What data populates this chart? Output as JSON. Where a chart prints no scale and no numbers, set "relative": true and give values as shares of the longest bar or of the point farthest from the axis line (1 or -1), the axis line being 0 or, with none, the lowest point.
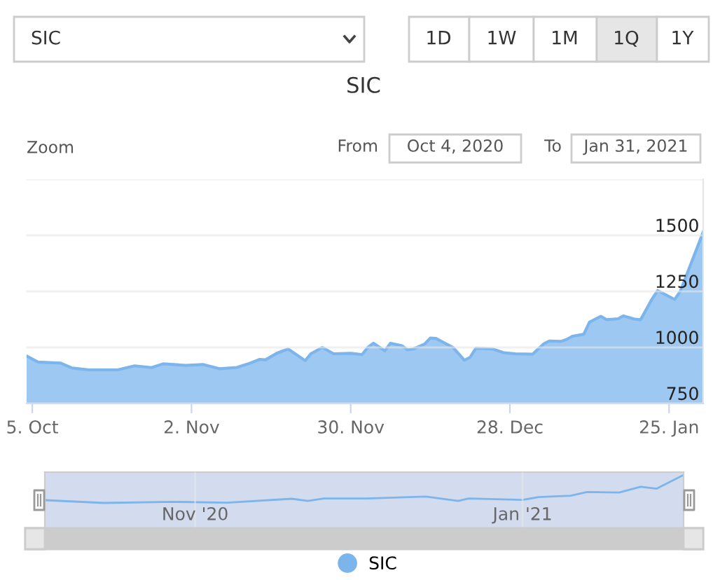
{
  "chart_data": [
    {
      "type": "area",
      "title": "SIC",
      "annotations": [
        "SIC",
        "1D",
        "1W",
        "1M",
        "1Q",
        "1Y",
        "Zoom",
        "From",
        "Oct 4, 2020",
        "To",
        "Jan 31, 2021"
      ],
      "x": [
        "2020-10-04",
        "2020-10-06",
        "2020-10-10",
        "2020-10-12",
        "2020-10-15",
        "2020-10-20",
        "2020-10-23",
        "2020-10-26",
        "2020-10-28",
        "2020-11-01",
        "2020-11-04",
        "2020-11-07",
        "2020-11-10",
        "2020-11-12",
        "2020-11-14",
        "2020-11-15",
        "2020-11-17",
        "2020-11-19",
        "2020-11-22",
        "2020-11-23",
        "2020-11-25",
        "2020-11-27",
        "2020-11-30",
        "2020-12-02",
        "2020-12-03",
        "2020-12-04",
        "2020-12-06",
        "2020-12-07",
        "2020-12-09",
        "2020-12-10",
        "2020-12-11",
        "2020-12-13",
        "2020-12-14",
        "2020-12-15",
        "2020-12-18",
        "2020-12-20",
        "2020-12-21",
        "2020-12-22",
        "2020-12-25",
        "2020-12-27",
        "2020-12-29",
        "2021-01-01",
        "2021-01-03",
        "2021-01-04",
        "2021-01-06",
        "2021-01-07",
        "2021-01-08",
        "2021-01-10",
        "2021-01-11",
        "2021-01-13",
        "2021-01-14",
        "2021-01-16",
        "2021-01-17",
        "2021-01-19",
        "2021-01-20",
        "2021-01-22",
        "2021-01-23",
        "2021-01-26",
        "2021-01-27",
        "2021-01-31"
      ],
      "series": [
        {
          "name": "SIC",
          "color": "#7cb5ec",
          "values": [
            962,
            935,
            930,
            908,
            900,
            900,
            918,
            910,
            927,
            920,
            924,
            905,
            911,
            927,
            947,
            945,
            974,
            993,
            941,
            972,
            1000,
            972,
            974,
            968,
            1000,
            1019,
            985,
            1019,
            1008,
            989,
            993,
            1015,
            1042,
            1040,
            1000,
            943,
            956,
            996,
            993,
            976,
            972,
            970,
            1017,
            1029,
            1027,
            1036,
            1050,
            1059,
            1113,
            1139,
            1124,
            1128,
            1141,
            1126,
            1124,
            1216,
            1254,
            1214,
            1252,
            1515
          ]
        }
      ],
      "xlim": [
        "2020-10-04",
        "2021-01-31"
      ],
      "xticks": [
        {
          "value": "2020-10-05",
          "label": "5. Oct"
        },
        {
          "value": "2020-11-02",
          "label": "2. Nov"
        },
        {
          "value": "2020-11-30",
          "label": "30. Nov"
        },
        {
          "value": "2020-12-28",
          "label": "28. Dec"
        },
        {
          "value": "2021-01-25",
          "label": "25. Jan"
        }
      ],
      "ylim": [
        750,
        1750
      ],
      "yticks": [
        750,
        1000,
        1250,
        1500,
        {
          "value": 1750,
          "label": null
        }
      ],
      "grid": "y",
      "legend": "bottom"
    },
    {
      "type": "line",
      "relative": true,
      "x": [
        "2020-10-04",
        "2020-10-15",
        "2020-10-28",
        "2020-11-07",
        "2020-11-19",
        "2020-11-22",
        "2020-11-25",
        "2020-12-03",
        "2020-12-14",
        "2020-12-20",
        "2020-12-22",
        "2021-01-01",
        "2021-01-04",
        "2021-01-10",
        "2021-01-13",
        "2021-01-19",
        "2021-01-23",
        "2021-01-26",
        "2021-01-31"
      ],
      "series": [
        {
          "color": "#7cb5ec",
          "values": [
            0.1,
            0,
            0.04,
            0.01,
            0.15,
            0.07,
            0.16,
            0.16,
            0.23,
            0.07,
            0.16,
            0.11,
            0.21,
            0.26,
            0.39,
            0.37,
            0.58,
            0.51,
            1
          ]
        }
      ],
      "xlim": [
        "2020-10-04",
        "2021-01-31"
      ],
      "xticks": [
        {
          "value": "2020-11-01",
          "label": "Nov '20"
        },
        {
          "value": "2021-01-01",
          "label": "Jan '21"
        }
      ],
      "grid": "x",
      "tick_labels": "x"
    }
  ]
}
